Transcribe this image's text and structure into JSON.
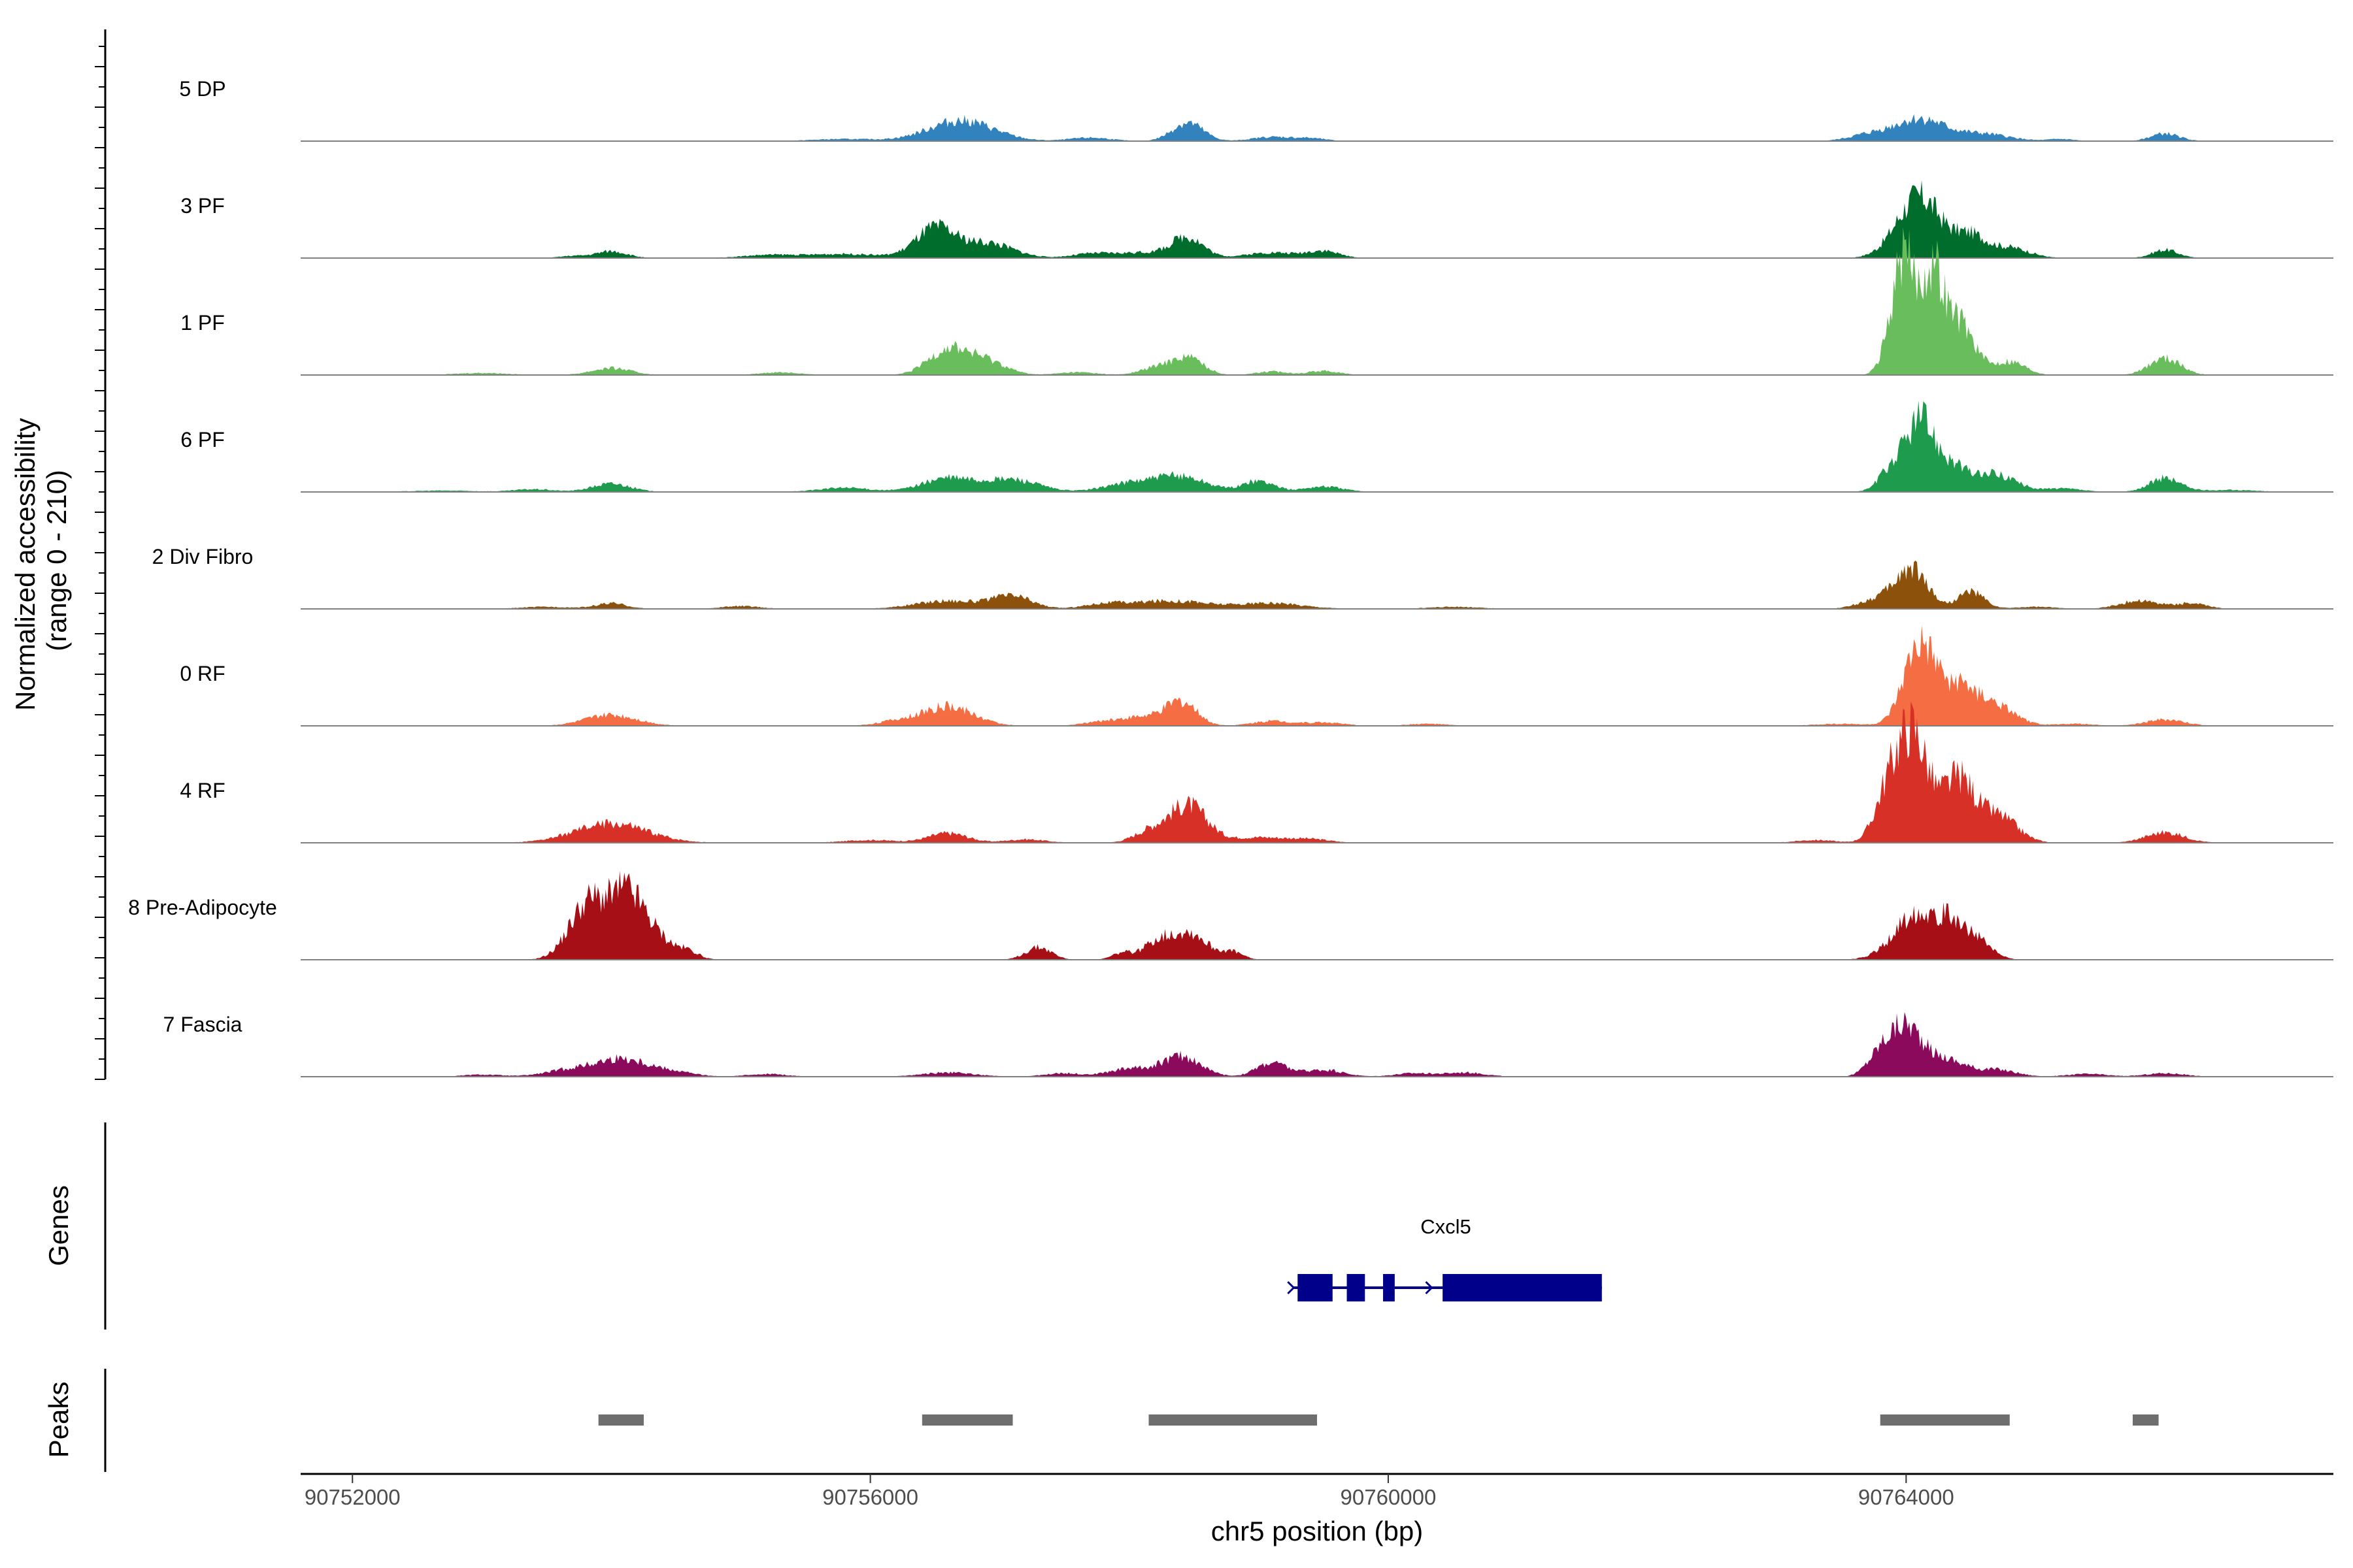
{
  "chart_data": {
    "type": "area",
    "title": "",
    "ylabel_line1": "Normalized accessibility",
    "ylabel_line2": "(range 0 - 210)",
    "yrange": [
      0,
      210
    ],
    "xlabel": "chr5 position (bp)",
    "xlim": [
      90751600,
      90767300
    ],
    "xticks": [
      90752000,
      90756000,
      90760000,
      90764000
    ],
    "xtick_labels": [
      "90752000",
      "90756000",
      "90760000",
      "90764000"
    ],
    "genes_label": "Genes",
    "peaks_label": "Peaks",
    "tracks": [
      {
        "name": "5 DP",
        "color": "#3182bd",
        "peaks": [
          [
            90756700,
            30,
            250
          ],
          [
            90758450,
            27,
            120
          ],
          [
            90764100,
            32,
            200
          ],
          [
            90766000,
            11,
            110
          ],
          [
            90755800,
            3,
            250
          ],
          [
            90757700,
            5,
            160
          ],
          [
            90759100,
            6,
            150
          ],
          [
            90759400,
            4,
            120
          ],
          [
            90763700,
            8,
            150
          ],
          [
            90764600,
            10,
            200
          ],
          [
            90765200,
            3,
            100
          ]
        ]
      },
      {
        "name": "3 PF",
        "color": "#006d2c",
        "peaks": [
          [
            90756500,
            42,
            150
          ],
          [
            90756900,
            22,
            200
          ],
          [
            90755800,
            6,
            300
          ],
          [
            90758450,
            30,
            120
          ],
          [
            90758100,
            8,
            200
          ],
          [
            90764100,
            90,
            170
          ],
          [
            90764500,
            30,
            120
          ],
          [
            90764800,
            15,
            150
          ],
          [
            90766000,
            12,
            100
          ],
          [
            90754000,
            10,
            120
          ],
          [
            90753700,
            3,
            100
          ],
          [
            90755200,
            4,
            200
          ],
          [
            90757700,
            6,
            150
          ],
          [
            90759100,
            8,
            200
          ],
          [
            90759500,
            10,
            120
          ]
        ]
      },
      {
        "name": "1 PF",
        "color": "#6abd5c",
        "peaks": [
          [
            90756600,
            38,
            150
          ],
          [
            90756900,
            20,
            150
          ],
          [
            90758450,
            26,
            120
          ],
          [
            90758200,
            10,
            120
          ],
          [
            90764000,
            145,
            80
          ],
          [
            90764200,
            140,
            80
          ],
          [
            90764400,
            80,
            120
          ],
          [
            90764800,
            20,
            120
          ],
          [
            90763900,
            50,
            80
          ],
          [
            90766000,
            25,
            120
          ],
          [
            90754000,
            10,
            150
          ],
          [
            90753000,
            3,
            200
          ],
          [
            90755300,
            4,
            150
          ],
          [
            90759100,
            5,
            120
          ],
          [
            90759500,
            6,
            120
          ],
          [
            90757600,
            4,
            150
          ]
        ]
      },
      {
        "name": "6 PF",
        "color": "#1e9b4c",
        "peaks": [
          [
            90764100,
            85,
            100
          ],
          [
            90764300,
            45,
            150
          ],
          [
            90764700,
            25,
            150
          ],
          [
            90763900,
            35,
            100
          ],
          [
            90756600,
            20,
            200
          ],
          [
            90757100,
            18,
            200
          ],
          [
            90758400,
            22,
            200
          ],
          [
            90758000,
            12,
            200
          ],
          [
            90759000,
            16,
            120
          ],
          [
            90759500,
            8,
            150
          ],
          [
            90754000,
            12,
            150
          ],
          [
            90753400,
            4,
            150
          ],
          [
            90755800,
            6,
            200
          ],
          [
            90766000,
            20,
            120
          ],
          [
            90765200,
            5,
            150
          ],
          [
            90766500,
            3,
            200
          ],
          [
            90752700,
            2,
            250
          ]
        ]
      },
      {
        "name": "2 Div Fibro",
        "color": "#8c510a",
        "peaks": [
          [
            90764050,
            55,
            120
          ],
          [
            90764500,
            25,
            100
          ],
          [
            90763800,
            15,
            150
          ],
          [
            90756600,
            12,
            250
          ],
          [
            90757100,
            18,
            150
          ],
          [
            90758300,
            12,
            300
          ],
          [
            90757800,
            6,
            150
          ],
          [
            90759100,
            8,
            250
          ],
          [
            90754000,
            8,
            120
          ],
          [
            90753500,
            3,
            200
          ],
          [
            90755000,
            4,
            150
          ],
          [
            90760500,
            3,
            200
          ],
          [
            90765800,
            12,
            150
          ],
          [
            90766200,
            8,
            120
          ],
          [
            90765000,
            3,
            150
          ]
        ]
      },
      {
        "name": "0 RF",
        "color": "#f46d43",
        "peaks": [
          [
            90764100,
            110,
            120
          ],
          [
            90764400,
            55,
            150
          ],
          [
            90764700,
            25,
            150
          ],
          [
            90754000,
            16,
            200
          ],
          [
            90756600,
            28,
            200
          ],
          [
            90756200,
            6,
            150
          ],
          [
            90758400,
            35,
            120
          ],
          [
            90758100,
            12,
            150
          ],
          [
            90757800,
            6,
            150
          ],
          [
            90759100,
            7,
            150
          ],
          [
            90759500,
            5,
            150
          ],
          [
            90760300,
            3,
            150
          ],
          [
            90766000,
            9,
            150
          ],
          [
            90765300,
            3,
            150
          ],
          [
            90763500,
            3,
            200
          ]
        ]
      },
      {
        "name": "4 RF",
        "color": "#d73027",
        "peaks": [
          [
            90764050,
            160,
            120
          ],
          [
            90763850,
            60,
            100
          ],
          [
            90764400,
            90,
            120
          ],
          [
            90764700,
            40,
            150
          ],
          [
            90754000,
            28,
            280
          ],
          [
            90758450,
            55,
            150
          ],
          [
            90758150,
            15,
            120
          ],
          [
            90756600,
            14,
            150
          ],
          [
            90756000,
            4,
            200
          ],
          [
            90757200,
            5,
            150
          ],
          [
            90759000,
            8,
            200
          ],
          [
            90759400,
            5,
            150
          ],
          [
            90766000,
            15,
            150
          ],
          [
            90763300,
            4,
            150
          ]
        ]
      },
      {
        "name": "8 Pre-Adipocyte",
        "color": "#a50f15",
        "peaks": [
          [
            90754100,
            80,
            120
          ],
          [
            90753850,
            70,
            120
          ],
          [
            90754300,
            40,
            150
          ],
          [
            90753700,
            25,
            120
          ],
          [
            90754600,
            10,
            80
          ],
          [
            90757300,
            18,
            100
          ],
          [
            90758450,
            40,
            150
          ],
          [
            90758200,
            20,
            100
          ],
          [
            90758800,
            10,
            80
          ],
          [
            90757950,
            10,
            80
          ],
          [
            90764100,
            70,
            180
          ],
          [
            90764400,
            40,
            120
          ],
          [
            90764600,
            15,
            100
          ]
        ]
      },
      {
        "name": "7 Fascia",
        "color": "#8b0a5c",
        "peaks": [
          [
            90764000,
            70,
            120
          ],
          [
            90763800,
            30,
            100
          ],
          [
            90764300,
            25,
            150
          ],
          [
            90764700,
            10,
            150
          ],
          [
            90754100,
            25,
            200
          ],
          [
            90753700,
            10,
            200
          ],
          [
            90754500,
            6,
            150
          ],
          [
            90755200,
            4,
            150
          ],
          [
            90756600,
            6,
            200
          ],
          [
            90757500,
            5,
            150
          ],
          [
            90758400,
            30,
            150
          ],
          [
            90758000,
            12,
            150
          ],
          [
            90759100,
            20,
            120
          ],
          [
            90759500,
            10,
            150
          ],
          [
            90760200,
            5,
            150
          ],
          [
            90760600,
            6,
            150
          ],
          [
            90766000,
            5,
            150
          ],
          [
            90753000,
            3,
            150
          ],
          [
            90765400,
            4,
            150
          ]
        ]
      }
    ],
    "gene": {
      "name": "Cxcl5",
      "color": "#00008b",
      "strand": "+",
      "start": 90759300,
      "end": 90761650,
      "exons": [
        [
          90759300,
          90759570
        ],
        [
          90759680,
          90759820
        ],
        [
          90759960,
          90760050
        ],
        [
          90760420,
          90761650
        ]
      ]
    },
    "peak_regions": [
      [
        90753900,
        90754250
      ],
      [
        90756400,
        90757100
      ],
      [
        90758150,
        90759450
      ],
      [
        90763800,
        90764800
      ],
      [
        90765750,
        90765950
      ]
    ]
  }
}
